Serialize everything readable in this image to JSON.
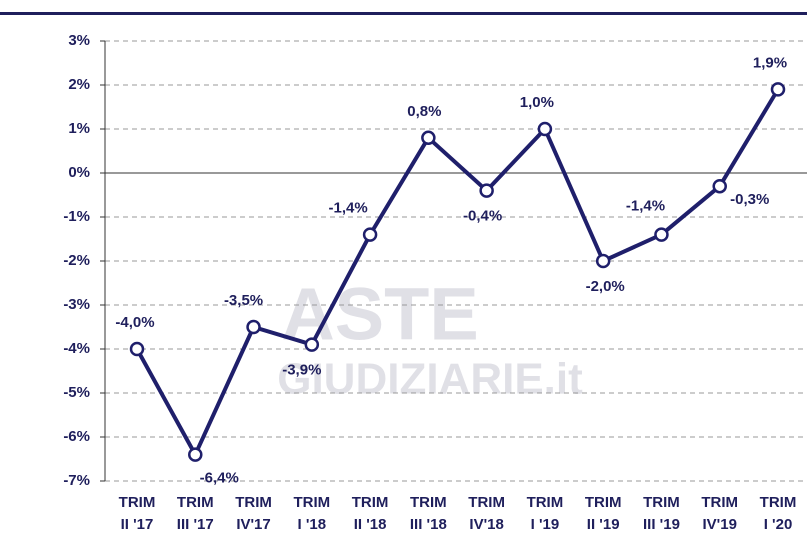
{
  "chart_data": {
    "type": "line",
    "watermark": [
      "ASTE",
      "GIUDIZIARIE.it"
    ],
    "categories": [
      [
        "TRIM",
        "II '17"
      ],
      [
        "TRIM",
        "III '17"
      ],
      [
        "TRIM",
        "IV'17"
      ],
      [
        "TRIM",
        "I '18"
      ],
      [
        "TRIM",
        "II '18"
      ],
      [
        "TRIM",
        "III '18"
      ],
      [
        "TRIM",
        "IV'18"
      ],
      [
        "TRIM",
        "I '19"
      ],
      [
        "TRIM",
        "II '19"
      ],
      [
        "TRIM",
        "III '19"
      ],
      [
        "TRIM",
        "IV'19"
      ],
      [
        "TRIM",
        "I '20"
      ]
    ],
    "series": [
      {
        "name": null,
        "color": "#1f1f6b",
        "values": [
          -4.0,
          -6.4,
          -3.5,
          -3.9,
          -1.4,
          0.8,
          -0.4,
          1.0,
          -2.0,
          -1.4,
          -0.3,
          1.9
        ],
        "value_labels": [
          "-4,0%",
          "-6,4%",
          "-3,5%",
          "-3,9%",
          "-1,4%",
          "0,8%",
          "-0,4%",
          "1,0%",
          "-2,0%",
          "-1,4%",
          "-0,3%",
          "1,9%"
        ]
      }
    ],
    "ylim": [
      -7,
      3
    ],
    "yticks": [
      {
        "value": 3,
        "label": "3%"
      },
      {
        "value": 2,
        "label": "2%"
      },
      {
        "value": 1,
        "label": "1%"
      },
      {
        "value": 0,
        "label": "0%"
      },
      {
        "value": -1,
        "label": "-1%"
      },
      {
        "value": -2,
        "label": "-2%"
      },
      {
        "value": -3,
        "label": "-3%"
      },
      {
        "value": -4,
        "label": "-4%"
      },
      {
        "value": -5,
        "label": "-5%"
      },
      {
        "value": -6,
        "label": "-6%"
      },
      {
        "value": -7,
        "label": "-7%"
      }
    ],
    "grid": true
  }
}
